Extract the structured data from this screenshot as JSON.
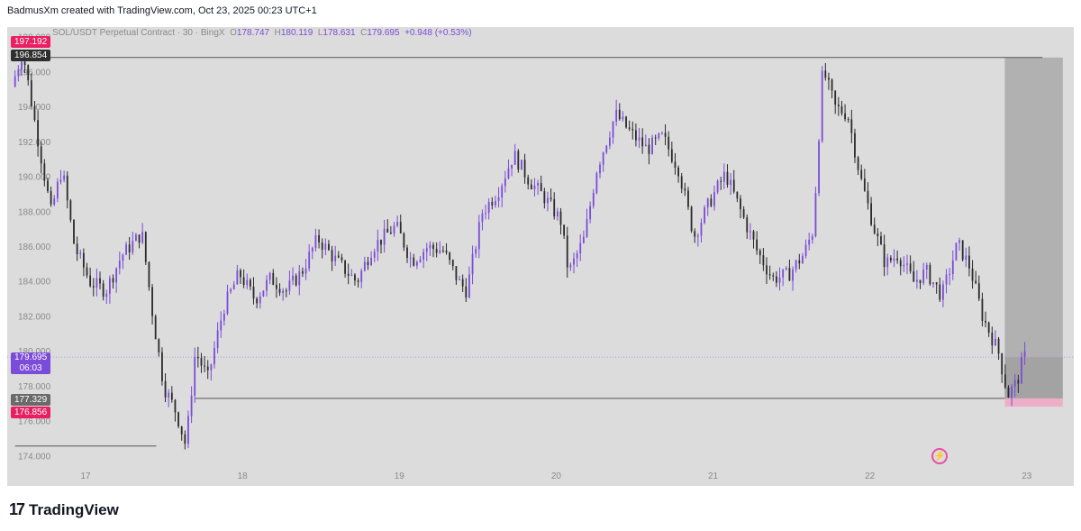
{
  "header": {
    "credit": "BadmusXm created with TradingView.com, Oct 23, 2025 00:23 UTC+1"
  },
  "legend": {
    "symbol": "SOL/USDT Perpetual Contract · 30 · BingX",
    "open_key": "O",
    "open": "178.747",
    "high_key": "H",
    "high": "180.119",
    "low_key": "L",
    "low": "178.631",
    "close_key": "C",
    "close": "179.695",
    "change": "+0.948 (+0.53%)"
  },
  "price_tags": {
    "top": "197.192",
    "resistance": "196.854",
    "last_price": "179.695",
    "countdown": "06:03",
    "entry": "177.329",
    "stop": "176.856"
  },
  "colors": {
    "background": "#dcdcdc",
    "candle": "#7b4bd9",
    "candle_dark": "#2a2a2a",
    "tag_red": "#e91e63",
    "tag_dark": "#2f2f2f",
    "tag_purple": "#7b4bd9",
    "zone_gray": "#a9a9a9",
    "zone_pink": "#f1a9c4",
    "pl_line": "#c995e0"
  },
  "footer": {
    "brand": "TradingView",
    "logo_icon": "tradingview-logo-icon",
    "bolt_icon": "lightning-bolt-icon"
  },
  "chart_data": {
    "type": "candlestick",
    "title": "SOL/USDT Perpetual Contract · 30 · BingX",
    "x_ticks": [
      "17",
      "18",
      "19",
      "20",
      "21",
      "22",
      "23"
    ],
    "y_ticks": [
      "174.000",
      "176.000",
      "178.000",
      "180.000",
      "182.000",
      "184.000",
      "186.000",
      "188.000",
      "190.000",
      "192.000",
      "194.000",
      "196.000",
      "198.000"
    ],
    "ylim": [
      173.4,
      198.6
    ],
    "x_range_days": [
      16.5,
      23.3
    ],
    "price_path": [
      {
        "d": 16.55,
        "p": 195.2
      },
      {
        "d": 16.62,
        "p": 197.2
      },
      {
        "d": 16.7,
        "p": 193.0
      },
      {
        "d": 16.8,
        "p": 188.0
      },
      {
        "d": 16.87,
        "p": 190.5
      },
      {
        "d": 16.95,
        "p": 186.0
      },
      {
        "d": 17.05,
        "p": 184.0
      },
      {
        "d": 17.15,
        "p": 183.5
      },
      {
        "d": 17.25,
        "p": 185.5
      },
      {
        "d": 17.38,
        "p": 186.8
      },
      {
        "d": 17.45,
        "p": 182.0
      },
      {
        "d": 17.52,
        "p": 178.0
      },
      {
        "d": 17.6,
        "p": 176.5
      },
      {
        "d": 17.66,
        "p": 174.6
      },
      {
        "d": 17.72,
        "p": 180.0
      },
      {
        "d": 17.8,
        "p": 178.5
      },
      {
        "d": 17.9,
        "p": 182.5
      },
      {
        "d": 18.0,
        "p": 184.5
      },
      {
        "d": 18.1,
        "p": 183.0
      },
      {
        "d": 18.2,
        "p": 184.2
      },
      {
        "d": 18.3,
        "p": 183.5
      },
      {
        "d": 18.4,
        "p": 184.6
      },
      {
        "d": 18.5,
        "p": 186.5
      },
      {
        "d": 18.62,
        "p": 185.2
      },
      {
        "d": 18.75,
        "p": 184.0
      },
      {
        "d": 18.85,
        "p": 186.0
      },
      {
        "d": 19.0,
        "p": 187.2
      },
      {
        "d": 19.1,
        "p": 185.2
      },
      {
        "d": 19.2,
        "p": 186.0
      },
      {
        "d": 19.3,
        "p": 185.8
      },
      {
        "d": 19.4,
        "p": 184.0
      },
      {
        "d": 19.45,
        "p": 183.5
      },
      {
        "d": 19.55,
        "p": 188.0
      },
      {
        "d": 19.65,
        "p": 189.2
      },
      {
        "d": 19.75,
        "p": 191.3
      },
      {
        "d": 19.85,
        "p": 189.8
      },
      {
        "d": 19.95,
        "p": 188.8
      },
      {
        "d": 20.05,
        "p": 187.5
      },
      {
        "d": 20.1,
        "p": 184.5
      },
      {
        "d": 20.2,
        "p": 186.5
      },
      {
        "d": 20.28,
        "p": 190.5
      },
      {
        "d": 20.4,
        "p": 193.6
      },
      {
        "d": 20.5,
        "p": 192.5
      },
      {
        "d": 20.6,
        "p": 191.6
      },
      {
        "d": 20.7,
        "p": 192.3
      },
      {
        "d": 20.8,
        "p": 190.5
      },
      {
        "d": 20.9,
        "p": 186.6
      },
      {
        "d": 21.0,
        "p": 188.6
      },
      {
        "d": 21.1,
        "p": 190.2
      },
      {
        "d": 21.2,
        "p": 188.0
      },
      {
        "d": 21.3,
        "p": 185.8
      },
      {
        "d": 21.4,
        "p": 184.2
      },
      {
        "d": 21.5,
        "p": 184.4
      },
      {
        "d": 21.6,
        "p": 185.6
      },
      {
        "d": 21.66,
        "p": 187.0
      },
      {
        "d": 21.72,
        "p": 196.2
      },
      {
        "d": 21.8,
        "p": 194.0
      },
      {
        "d": 21.88,
        "p": 193.6
      },
      {
        "d": 21.96,
        "p": 190.0
      },
      {
        "d": 22.05,
        "p": 187.0
      },
      {
        "d": 22.12,
        "p": 185.0
      },
      {
        "d": 22.2,
        "p": 185.6
      },
      {
        "d": 22.3,
        "p": 184.0
      },
      {
        "d": 22.38,
        "p": 184.6
      },
      {
        "d": 22.48,
        "p": 183.2
      },
      {
        "d": 22.58,
        "p": 186.2
      },
      {
        "d": 22.66,
        "p": 184.8
      },
      {
        "d": 22.74,
        "p": 182.0
      },
      {
        "d": 22.84,
        "p": 180.0
      },
      {
        "d": 22.9,
        "p": 177.5
      },
      {
        "d": 22.96,
        "p": 178.3
      },
      {
        "d": 23.0,
        "p": 179.7
      }
    ],
    "horizontal_levels": [
      {
        "price": 196.854,
        "from_day": 16.55,
        "to_day": 23.1
      },
      {
        "price": 177.329,
        "from_day": 17.7,
        "to_day": 22.86
      },
      {
        "price": 174.6,
        "from_day": 16.55,
        "to_day": 17.45
      }
    ],
    "position": {
      "entry": 177.329,
      "target": 196.854,
      "stop": 176.856,
      "from_day": 22.86,
      "to_day": 23.23
    },
    "last_price": 179.695
  }
}
